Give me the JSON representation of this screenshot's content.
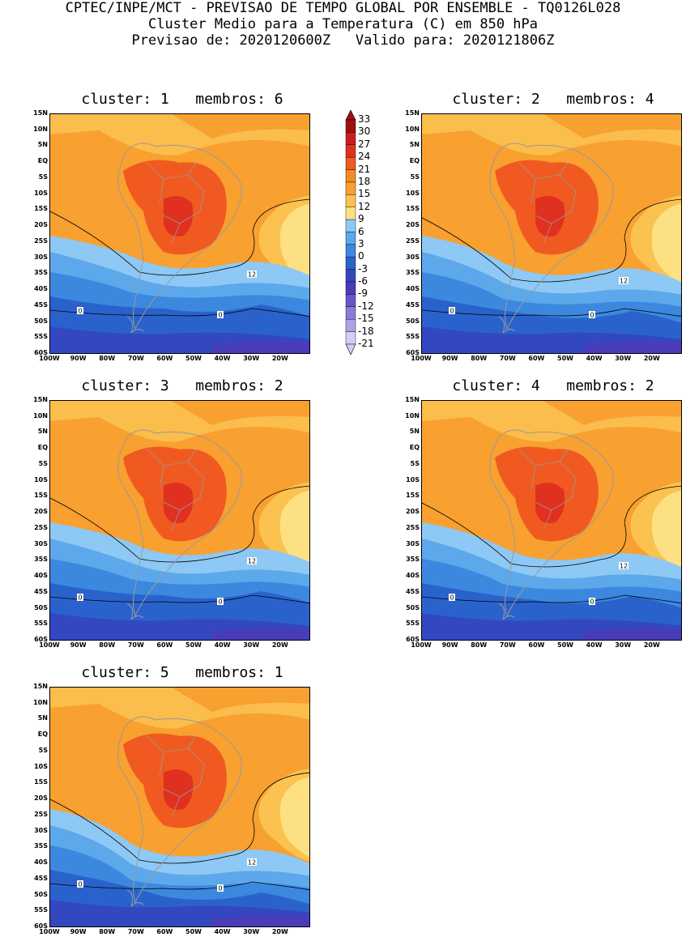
{
  "header": {
    "line1": "CPTEC/INPE/MCT - PREVISAO DE TEMPO GLOBAL POR ENSEMBLE - TQ0126L028",
    "line2": "Cluster Medio para a Temperatura (C) em 850 hPa",
    "line3": "Previsao de: 2020120600Z   Valido para: 2020121806Z"
  },
  "panels": [
    {
      "title": "cluster: 1   membros: 6"
    },
    {
      "title": "cluster: 2   membros: 4"
    },
    {
      "title": "cluster: 3   membros: 2"
    },
    {
      "title": "cluster: 4   membros: 2"
    },
    {
      "title": "cluster: 5   membros: 1"
    }
  ],
  "lat_labels": [
    "15N",
    "10N",
    "5N",
    "EQ",
    "5S",
    "10S",
    "15S",
    "20S",
    "25S",
    "30S",
    "35S",
    "40S",
    "45S",
    "50S",
    "55S",
    "60S"
  ],
  "lon_labels": [
    "100W",
    "90W",
    "80W",
    "70W",
    "60W",
    "50W",
    "40W",
    "30W",
    "20W"
  ],
  "colorbar": {
    "labels": [
      "33",
      "30",
      "27",
      "24",
      "21",
      "18",
      "15",
      "12",
      "9",
      "6",
      "3",
      "0",
      "-3",
      "-6",
      "-9",
      "-12",
      "-15",
      "-18",
      "-21"
    ],
    "colors": [
      "#a01010",
      "#c82020",
      "#e03020",
      "#f05a20",
      "#f58a28",
      "#f8a030",
      "#fbc250",
      "#fde082",
      "#8ec8f4",
      "#5ca8ea",
      "#3c88de",
      "#2a62cc",
      "#3348c0",
      "#4a3cb8",
      "#6a54c8",
      "#8c78d8",
      "#b0a0e6",
      "#d8ccf4"
    ]
  },
  "contour_labels": {
    "twelve": "12",
    "zero": "0"
  }
}
